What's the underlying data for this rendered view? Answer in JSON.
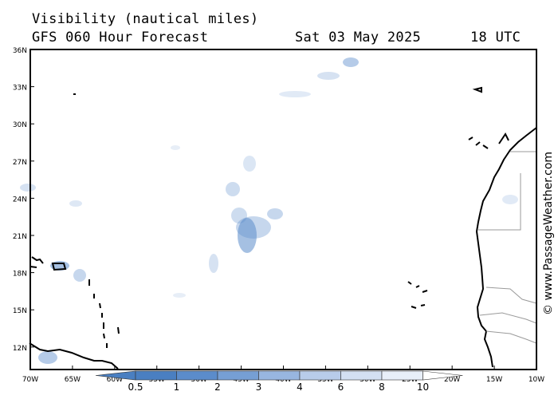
{
  "header": {
    "title": "Visibility (nautical miles)",
    "subtitle": "GFS 060 Hour Forecast",
    "date": "Sat 03 May 2025",
    "time": "18 UTC"
  },
  "credit": "© www.PassageWeather.com",
  "map": {
    "lat_labels": [
      "36N",
      "33N",
      "30N",
      "27N",
      "24N",
      "21N",
      "18N",
      "15N",
      "12N"
    ],
    "lon_labels": [
      "70W",
      "65W",
      "60W",
      "55W",
      "50W",
      "45W",
      "40W",
      "35W",
      "30W",
      "25W",
      "20W",
      "15W",
      "10W"
    ]
  },
  "legend": {
    "labels": [
      "0.5",
      "1",
      "2",
      "3",
      "4",
      "6",
      "8",
      "10"
    ],
    "colors": [
      "#4a7fc1",
      "#5b8ccb",
      "#769fd4",
      "#98b6e0",
      "#b8ccea",
      "#d3e0f2",
      "#e8eff9",
      "#ffffff"
    ]
  },
  "colors": {
    "coast": "#000000",
    "border": "#9a9a9a",
    "frame": "#000000"
  }
}
